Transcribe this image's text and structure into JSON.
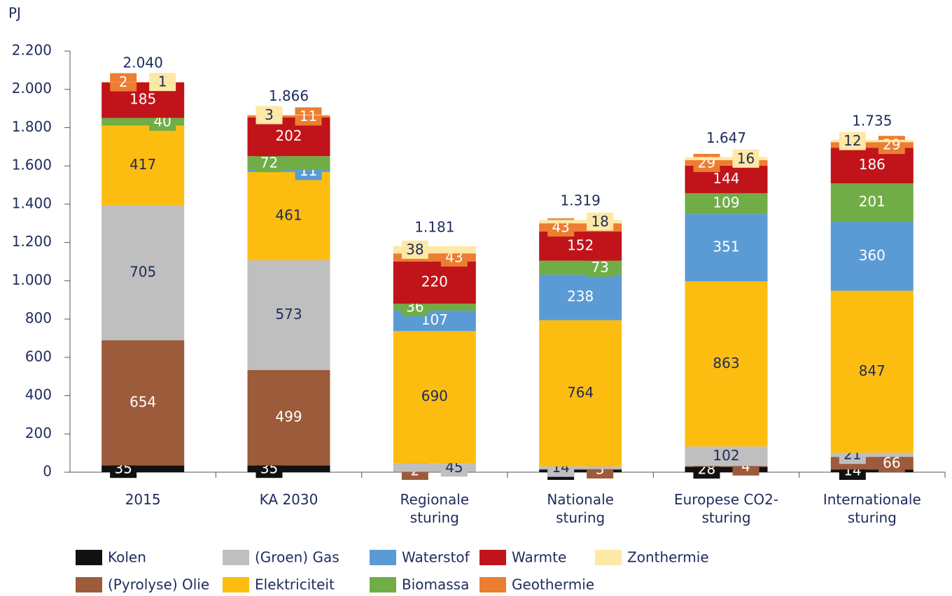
{
  "chart_data": {
    "type": "stacked_bar",
    "y_axis_label": "PJ",
    "categories": [
      "2015",
      "KA 2030",
      "Regionale sturing",
      "Nationale sturing",
      "Europese CO2-sturing",
      "Internationale sturing"
    ],
    "series": [
      {
        "name": "Kolen",
        "color": "#111111",
        "values": [
          35,
          35,
          null,
          13,
          28,
          14
        ]
      },
      {
        "name": "(Pyrolyse) Olie",
        "color": "#9c5b3b",
        "values": [
          654,
          499,
          2,
          3,
          4,
          66
        ]
      },
      {
        "name": "(Groen) Gas",
        "color": "#bfbfbf",
        "values": [
          705,
          573,
          45,
          14,
          102,
          21
        ]
      },
      {
        "name": "Elektriciteit",
        "color": "#fcbd10",
        "values": [
          417,
          461,
          690,
          764,
          863,
          847
        ]
      },
      {
        "name": "Waterstof",
        "color": "#5b9bd5",
        "values": [
          null,
          11,
          107,
          238,
          351,
          360
        ]
      },
      {
        "name": "Biomassa",
        "color": "#70ad47",
        "values": [
          40,
          72,
          36,
          73,
          109,
          201
        ]
      },
      {
        "name": "Warmte",
        "color": "#c0141a",
        "values": [
          185,
          202,
          220,
          152,
          144,
          186
        ]
      },
      {
        "name": "Geothermie",
        "color": "#ed7d31",
        "values": [
          2,
          11,
          43,
          43,
          29,
          29
        ]
      },
      {
        "name": "Zonthermie",
        "color": "#fde8a6",
        "values": [
          1,
          3,
          38,
          18,
          16,
          12
        ]
      }
    ],
    "totals": {
      "values": [
        2040,
        1866,
        1181,
        1319,
        1647,
        1735
      ],
      "value_labels": [
        "2.040",
        "1.866",
        "1.181",
        "1.319",
        "1.647",
        "1.735"
      ]
    },
    "ylim": [
      0,
      2200
    ],
    "yticks": [
      0,
      200,
      400,
      600,
      800,
      {
        "value": 1000,
        "label": "1.000"
      },
      {
        "value": 1200,
        "label": "1.200"
      },
      {
        "value": 1400,
        "label": "1.400"
      },
      {
        "value": 1600,
        "label": "1.600"
      },
      {
        "value": 1800,
        "label": "1.800"
      },
      {
        "value": 2000,
        "label": "2.000"
      },
      {
        "value": 2200,
        "label": "2.200"
      }
    ],
    "grid": false
  }
}
